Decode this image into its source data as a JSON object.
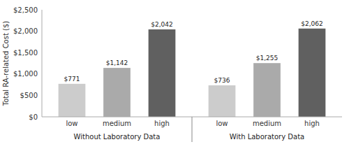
{
  "chart_data": {
    "type": "bar",
    "y_label": "Total RA-related Cost ($)",
    "categories": [
      "Without Laboratory Data",
      "With Laboratory Data"
    ],
    "series": [
      {
        "name": "low",
        "color": "#cccccc",
        "values": [
          771,
          736
        ],
        "value_labels": [
          "$771",
          "$736"
        ]
      },
      {
        "name": "medium",
        "color": "#aaaaaa",
        "values": [
          1142,
          1255
        ],
        "value_labels": [
          "$1,142",
          "$1,255"
        ]
      },
      {
        "name": "high",
        "color": "#606060",
        "values": [
          2042,
          2062
        ],
        "value_labels": [
          "$2,042",
          "$2,062"
        ]
      }
    ],
    "ylim": [
      0,
      2500
    ],
    "yticks": [
      {
        "value": 0,
        "label": "$0"
      },
      {
        "value": 500,
        "label": "$500"
      },
      {
        "value": 1000,
        "label": "$1,000"
      },
      {
        "value": 1500,
        "label": "$1,500"
      },
      {
        "value": 2000,
        "label": "$2,000"
      },
      {
        "value": 2500,
        "label": "$2,500"
      }
    ],
    "data_labels": true
  }
}
